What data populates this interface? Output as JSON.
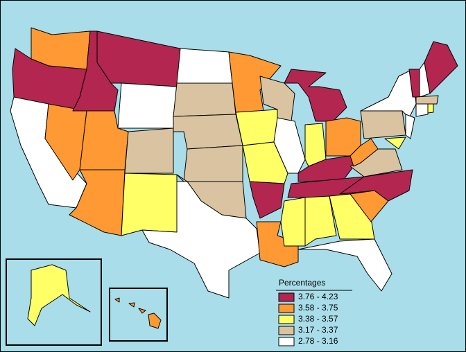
{
  "legend": {
    "title": "Percentages",
    "items": [
      {
        "label": "3.76 - 4.23",
        "color": "#b22650"
      },
      {
        "label": "3.58 - 3.75",
        "color": "#ff9933"
      },
      {
        "label": "3.38 - 3.57",
        "color": "#ffff66"
      },
      {
        "label": "3.17 - 3.37",
        "color": "#d9c3a0"
      },
      {
        "label": "2.78 - 3.16",
        "color": "#ffffff"
      }
    ]
  }
}
